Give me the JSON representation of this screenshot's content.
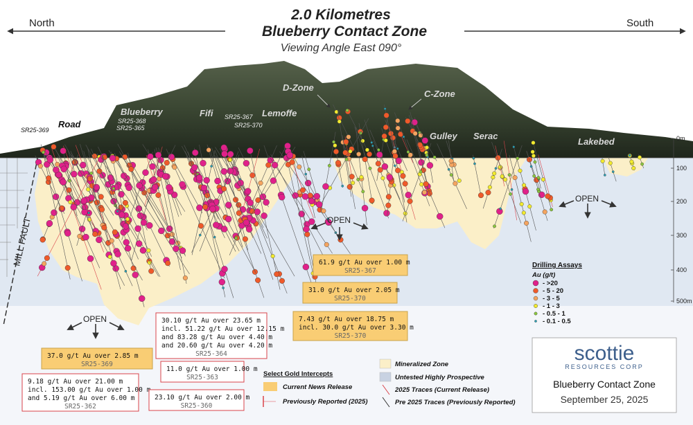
{
  "header": {
    "title_line1": "2.0 Kilometres",
    "title_line2": "Blueberry Contact Zone",
    "subtitle": "Viewing Angle East 090°",
    "left_direction": "North",
    "right_direction": "South"
  },
  "places": [
    "Road",
    "Blueberry",
    "Fifi",
    "Lemoffe",
    "D-Zone",
    "C-Zone",
    "Gulley",
    "Serac",
    "Lakebed"
  ],
  "hole_labels": [
    "SR25-369",
    "SR25-368",
    "SR25-365",
    "SR25-367",
    "SR25-370"
  ],
  "fault_label": "MILL FAULT",
  "open_labels": [
    "OPEN",
    "OPEN",
    "OPEN"
  ],
  "depth_labels": [
    "0m",
    "100",
    "200",
    "300",
    "400",
    "500m"
  ],
  "intercepts": [
    {
      "lines": [
        "61.9 g/t Au over 1.00 m"
      ],
      "hole": "SR25-367",
      "fill": "#f9cd74",
      "border": "#c9a24a"
    },
    {
      "lines": [
        "31.0 g/t Au over 2.05 m"
      ],
      "hole": "SR25-370",
      "fill": "#f9cd74",
      "border": "#c9a24a"
    },
    {
      "lines": [
        "7.43 g/t Au over 18.75 m",
        "incl. 30.0 g/t Au over 3.30 m"
      ],
      "hole": "SR25-370",
      "fill": "#f9cd74",
      "border": "#c9a24a"
    },
    {
      "lines": [
        "30.10 g/t Au over 23.65 m",
        "incl. 51.22 g/t Au over 12.15 m",
        "and 83.28 g/t Au over 4.40 m",
        "and 20.60 g/t Au over 4.20 m"
      ],
      "hole": "SR25-364",
      "fill": "#ffffff",
      "border": "#d9434a"
    },
    {
      "lines": [
        "37.0 g/t Au over 2.85 m"
      ],
      "hole": "SR25-369",
      "fill": "#f9cd74",
      "border": "#c9a24a"
    },
    {
      "lines": [
        "11.0 g/t Au over 1.00 m"
      ],
      "hole": "SR25-363",
      "fill": "#ffffff",
      "border": "#d9434a"
    },
    {
      "lines": [
        "9.18 g/t Au over 21.00 m",
        "incl. 153.00 g/t Au over 1.00 m",
        "and 5.19 g/t Au over 6.00 m"
      ],
      "hole": "SR25-362",
      "fill": "#ffffff",
      "border": "#d9434a"
    },
    {
      "lines": [
        "23.10 g/t Au over 2.00 m"
      ],
      "hole": "SR25-360",
      "fill": "#ffffff",
      "border": "#d9434a"
    }
  ],
  "assay_legend": {
    "title": "Drilling Assays",
    "unit": "Au (g/t)",
    "entries": [
      {
        "label": "- >20",
        "color": "#e0218a"
      },
      {
        "label": "- 5 - 20",
        "color": "#ef5a2a"
      },
      {
        "label": "- 3 - 5",
        "color": "#f4a460"
      },
      {
        "label": "- 1 - 3",
        "color": "#f2ea2e"
      },
      {
        "label": "- 0.5 - 1",
        "color": "#8cc63f"
      },
      {
        "label": "- 0.1 - 0.5",
        "color": "#2aa3b8"
      }
    ]
  },
  "intercept_legend": {
    "title": "Select Gold Intercepts",
    "items": [
      "Current News Release",
      "Previously Reported (2025)"
    ]
  },
  "zone_legend": [
    "Mineralized Zone",
    "Untested Highly Prospective",
    "2025 Traces (Current Release)",
    "Pre 2025 Traces (Previously Reported)"
  ],
  "logo": {
    "name": "scottie",
    "tagline": "RESOURCES CORP",
    "project": "Blueberry Contact Zone",
    "date": "September 25, 2025"
  }
}
